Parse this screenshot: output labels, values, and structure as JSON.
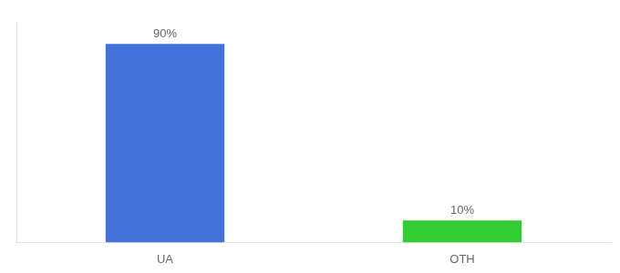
{
  "chart_data": {
    "type": "bar",
    "categories": [
      "UA",
      "OTH"
    ],
    "values": [
      90,
      10
    ],
    "value_labels": [
      "90%",
      "10%"
    ],
    "colors": [
      "#4472db",
      "#33cc33"
    ],
    "ylim": [
      0,
      100
    ],
    "grid": false,
    "data_labels": true,
    "tick_labels": "x"
  }
}
